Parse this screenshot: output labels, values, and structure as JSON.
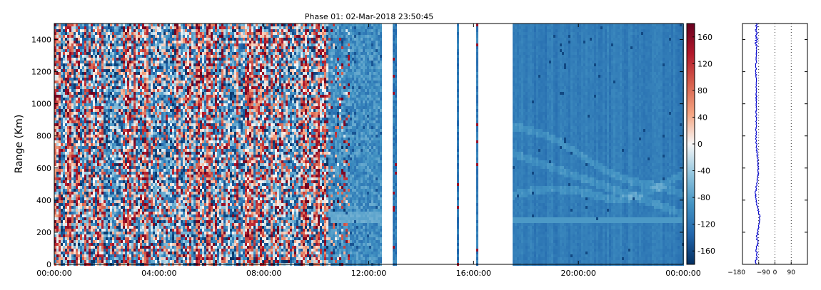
{
  "chart_data": [
    {
      "type": "heatmap",
      "title": "Phase 01: 02-Mar-2018 23:50:45",
      "xlabel": "",
      "ylabel": "Range (Km)",
      "x_range": [
        "00:00:00",
        "24:00:00"
      ],
      "x_tick_labels": [
        "00:00:00",
        "04:00:00",
        "08:00:00",
        "12:00:00",
        "16:00:00",
        "20:00:00",
        "00:00:00"
      ],
      "ylim": [
        0,
        1500
      ],
      "y_ticks": [
        0,
        200,
        400,
        600,
        800,
        1000,
        1200,
        1400
      ],
      "grid": false,
      "colormap": "RdBu_r",
      "colormap_stops": [
        "#053061",
        "#2166ac",
        "#4393c3",
        "#92c5de",
        "#f7f7f7",
        "#f4a582",
        "#d6604d",
        "#b2182b",
        "#67001f"
      ],
      "color_range": [
        -180,
        180
      ],
      "colorbar_ticks": [
        -160,
        -120,
        -80,
        -40,
        0,
        40,
        80,
        120,
        160
      ],
      "regions": [
        {
          "from": "00:00:00",
          "to": "10:30:00",
          "description": "random phase noise spanning -180 to 180"
        },
        {
          "from": "10:30:00",
          "to": "12:30:00",
          "description": "mostly blue, around -100"
        },
        {
          "from": "12:30:00",
          "to": "17:30:00",
          "description": "no data except thin strips near 13:00, 15:25 and 16:10"
        },
        {
          "from": "17:30:00",
          "to": "24:00:00",
          "description": "smooth blue field around -110 with curved echo bands"
        }
      ]
    },
    {
      "type": "line",
      "title": "",
      "xlabel": "",
      "ylabel": "",
      "xlim": [
        -180,
        180
      ],
      "ylim": [
        0,
        1500
      ],
      "x_ticks": [
        -180,
        -90,
        0,
        90
      ],
      "reference_lines": [
        -90,
        0,
        90
      ],
      "line_color": "#0000cc",
      "profile_points": [
        {
          "range": 0,
          "value": -105
        },
        {
          "range": 100,
          "value": -102
        },
        {
          "range": 200,
          "value": -96
        },
        {
          "range": 250,
          "value": -88
        },
        {
          "range": 300,
          "value": -85
        },
        {
          "range": 350,
          "value": -95
        },
        {
          "range": 400,
          "value": -105
        },
        {
          "range": 450,
          "value": -108
        },
        {
          "range": 500,
          "value": -100
        },
        {
          "range": 550,
          "value": -94
        },
        {
          "range": 600,
          "value": -92
        },
        {
          "range": 650,
          "value": -95
        },
        {
          "range": 700,
          "value": -100
        },
        {
          "range": 800,
          "value": -105
        },
        {
          "range": 900,
          "value": -104
        },
        {
          "range": 1000,
          "value": -103
        },
        {
          "range": 1100,
          "value": -104
        },
        {
          "range": 1200,
          "value": -105
        },
        {
          "range": 1300,
          "value": -104
        },
        {
          "range": 1400,
          "value": -103
        },
        {
          "range": 1500,
          "value": -102
        }
      ]
    }
  ]
}
